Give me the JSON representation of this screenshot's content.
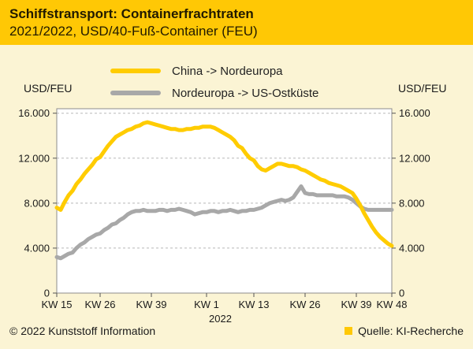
{
  "header": {
    "title": "Schiffstransport: Containerfrachtraten",
    "subtitle": "2021/2022, USD/40-Fuß-Container (FEU)"
  },
  "legend": {
    "items": [
      {
        "label": "China -> Nordeuropa",
        "color": "#ffcc00"
      },
      {
        "label": "Nordeuropa -> US-Ostküste",
        "color": "#a8a8a8"
      }
    ]
  },
  "axes": {
    "left_unit": "USD/FEU",
    "right_unit": "USD/FEU"
  },
  "footer": {
    "copyright": "© 2022 Kunststoff Information",
    "source": "Quelle: KI-Recherche",
    "source_marker_color": "#ffc805"
  },
  "chart_data": {
    "type": "line",
    "title": "Schiffstransport: Containerfrachtraten",
    "subtitle": "2021/2022, USD/40-Fuß-Container (FEU)",
    "ylabel": "USD/FEU",
    "ylim": [
      0,
      16000
    ],
    "grid": "dashed-horizontal",
    "legend_position": "top",
    "x_unit": "calendar week index starting at KW 15/2021 (one unit = one week)",
    "y_ticks": [
      {
        "value": 0,
        "label": "0"
      },
      {
        "value": 4000,
        "label": "4.000"
      },
      {
        "value": 8000,
        "label": "8.000"
      },
      {
        "value": 12000,
        "label": "12.000"
      },
      {
        "value": 16000,
        "label": "16.000"
      }
    ],
    "x_ticks": [
      {
        "week": 0,
        "label": "KW 15"
      },
      {
        "week": 11,
        "label": "KW 26"
      },
      {
        "week": 24,
        "label": "KW 39"
      },
      {
        "week": 38,
        "label": "KW 1"
      },
      {
        "week": 50,
        "label": "KW 13"
      },
      {
        "week": 63,
        "label": "KW 26"
      },
      {
        "week": 76,
        "label": "KW 39"
      },
      {
        "week": 85,
        "label": "KW 48"
      }
    ],
    "year_label": {
      "week": 41.5,
      "label": "2022"
    },
    "series": [
      {
        "name": "China -> Nordeuropa",
        "color": "#ffcc00",
        "points": [
          [
            0,
            7600
          ],
          [
            1,
            7400
          ],
          [
            2,
            8100
          ],
          [
            3,
            8700
          ],
          [
            4,
            9100
          ],
          [
            5,
            9700
          ],
          [
            6,
            10100
          ],
          [
            7,
            10600
          ],
          [
            8,
            11000
          ],
          [
            9,
            11400
          ],
          [
            10,
            11900
          ],
          [
            11,
            12100
          ],
          [
            12,
            12600
          ],
          [
            13,
            13100
          ],
          [
            14,
            13500
          ],
          [
            15,
            13900
          ],
          [
            16,
            14100
          ],
          [
            17,
            14300
          ],
          [
            18,
            14500
          ],
          [
            19,
            14600
          ],
          [
            20,
            14800
          ],
          [
            21,
            14900
          ],
          [
            22,
            15100
          ],
          [
            23,
            15200
          ],
          [
            24,
            15100
          ],
          [
            25,
            15000
          ],
          [
            26,
            14900
          ],
          [
            27,
            14800
          ],
          [
            28,
            14700
          ],
          [
            29,
            14600
          ],
          [
            30,
            14600
          ],
          [
            31,
            14500
          ],
          [
            32,
            14500
          ],
          [
            33,
            14600
          ],
          [
            34,
            14600
          ],
          [
            35,
            14700
          ],
          [
            36,
            14700
          ],
          [
            37,
            14800
          ],
          [
            38,
            14800
          ],
          [
            39,
            14800
          ],
          [
            40,
            14700
          ],
          [
            41,
            14500
          ],
          [
            42,
            14300
          ],
          [
            43,
            14100
          ],
          [
            44,
            13900
          ],
          [
            45,
            13600
          ],
          [
            46,
            13100
          ],
          [
            47,
            12900
          ],
          [
            48,
            12400
          ],
          [
            49,
            12000
          ],
          [
            50,
            11800
          ],
          [
            51,
            11300
          ],
          [
            52,
            11000
          ],
          [
            53,
            10900
          ],
          [
            54,
            11100
          ],
          [
            55,
            11300
          ],
          [
            56,
            11500
          ],
          [
            57,
            11500
          ],
          [
            58,
            11400
          ],
          [
            59,
            11300
          ],
          [
            60,
            11300
          ],
          [
            61,
            11200
          ],
          [
            62,
            11000
          ],
          [
            63,
            10900
          ],
          [
            64,
            10700
          ],
          [
            65,
            10500
          ],
          [
            66,
            10300
          ],
          [
            67,
            10100
          ],
          [
            68,
            10000
          ],
          [
            69,
            9800
          ],
          [
            70,
            9700
          ],
          [
            71,
            9600
          ],
          [
            72,
            9500
          ],
          [
            73,
            9300
          ],
          [
            74,
            9100
          ],
          [
            75,
            8900
          ],
          [
            76,
            8400
          ],
          [
            77,
            7800
          ],
          [
            78,
            7100
          ],
          [
            79,
            6500
          ],
          [
            80,
            5900
          ],
          [
            81,
            5400
          ],
          [
            82,
            5000
          ],
          [
            83,
            4700
          ],
          [
            84,
            4400
          ],
          [
            85,
            4200
          ]
        ]
      },
      {
        "name": "Nordeuropa -> US-Ostküste",
        "color": "#a8a8a8",
        "points": [
          [
            0,
            3200
          ],
          [
            1,
            3100
          ],
          [
            2,
            3300
          ],
          [
            3,
            3500
          ],
          [
            4,
            3600
          ],
          [
            5,
            4000
          ],
          [
            6,
            4300
          ],
          [
            7,
            4500
          ],
          [
            8,
            4800
          ],
          [
            9,
            5000
          ],
          [
            10,
            5200
          ],
          [
            11,
            5300
          ],
          [
            12,
            5600
          ],
          [
            13,
            5800
          ],
          [
            14,
            6100
          ],
          [
            15,
            6200
          ],
          [
            16,
            6500
          ],
          [
            17,
            6700
          ],
          [
            18,
            7000
          ],
          [
            19,
            7200
          ],
          [
            20,
            7300
          ],
          [
            21,
            7300
          ],
          [
            22,
            7400
          ],
          [
            23,
            7300
          ],
          [
            24,
            7300
          ],
          [
            25,
            7300
          ],
          [
            26,
            7400
          ],
          [
            27,
            7400
          ],
          [
            28,
            7300
          ],
          [
            29,
            7400
          ],
          [
            30,
            7400
          ],
          [
            31,
            7500
          ],
          [
            32,
            7400
          ],
          [
            33,
            7300
          ],
          [
            34,
            7200
          ],
          [
            35,
            7000
          ],
          [
            36,
            7100
          ],
          [
            37,
            7200
          ],
          [
            38,
            7200
          ],
          [
            39,
            7300
          ],
          [
            40,
            7300
          ],
          [
            41,
            7200
          ],
          [
            42,
            7300
          ],
          [
            43,
            7300
          ],
          [
            44,
            7400
          ],
          [
            45,
            7300
          ],
          [
            46,
            7200
          ],
          [
            47,
            7300
          ],
          [
            48,
            7300
          ],
          [
            49,
            7400
          ],
          [
            50,
            7400
          ],
          [
            51,
            7500
          ],
          [
            52,
            7600
          ],
          [
            53,
            7800
          ],
          [
            54,
            8000
          ],
          [
            55,
            8100
          ],
          [
            56,
            8200
          ],
          [
            57,
            8300
          ],
          [
            58,
            8200
          ],
          [
            59,
            8300
          ],
          [
            60,
            8500
          ],
          [
            61,
            9000
          ],
          [
            62,
            9500
          ],
          [
            63,
            8900
          ],
          [
            64,
            8800
          ],
          [
            65,
            8800
          ],
          [
            66,
            8700
          ],
          [
            67,
            8700
          ],
          [
            68,
            8700
          ],
          [
            69,
            8700
          ],
          [
            70,
            8700
          ],
          [
            71,
            8600
          ],
          [
            72,
            8600
          ],
          [
            73,
            8600
          ],
          [
            74,
            8500
          ],
          [
            75,
            8300
          ],
          [
            76,
            8000
          ],
          [
            77,
            7700
          ],
          [
            78,
            7500
          ],
          [
            79,
            7400
          ],
          [
            80,
            7400
          ],
          [
            81,
            7400
          ],
          [
            82,
            7400
          ],
          [
            83,
            7400
          ],
          [
            84,
            7400
          ],
          [
            85,
            7400
          ]
        ]
      }
    ]
  }
}
